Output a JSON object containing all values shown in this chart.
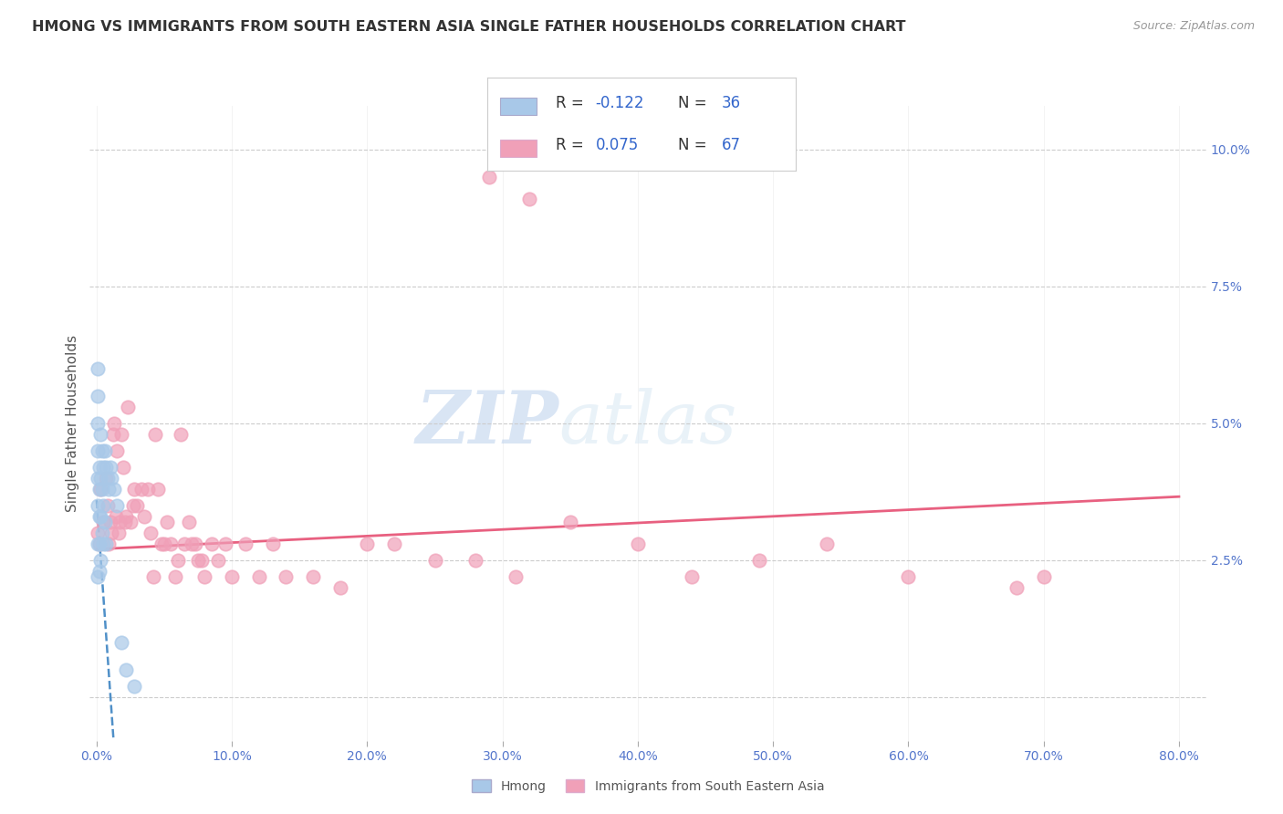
{
  "title": "HMONG VS IMMIGRANTS FROM SOUTH EASTERN ASIA SINGLE FATHER HOUSEHOLDS CORRELATION CHART",
  "source": "Source: ZipAtlas.com",
  "ylabel_ticks": [
    0.0,
    0.025,
    0.05,
    0.075,
    0.1
  ],
  "ylabel_labels": [
    "",
    "2.5%",
    "5.0%",
    "7.5%",
    "10.0%"
  ],
  "xlim": [
    -0.005,
    0.82
  ],
  "ylim": [
    -0.008,
    0.108
  ],
  "hmong_color": "#a8c8e8",
  "sea_color": "#f0a0b8",
  "trend_hmong_color": "#5090c8",
  "trend_sea_color": "#e86080",
  "watermark_zip": "ZIP",
  "watermark_atlas": "atlas",
  "legend_hmong": "Hmong",
  "legend_sea": "Immigrants from South Eastern Asia",
  "ylabel": "Single Father Households",
  "background_color": "#ffffff",
  "grid_color": "#cccccc",
  "hmong_x": [
    0.001,
    0.001,
    0.001,
    0.001,
    0.001,
    0.001,
    0.001,
    0.001,
    0.002,
    0.002,
    0.002,
    0.002,
    0.002,
    0.003,
    0.003,
    0.003,
    0.003,
    0.004,
    0.004,
    0.004,
    0.005,
    0.005,
    0.005,
    0.006,
    0.006,
    0.007,
    0.007,
    0.008,
    0.009,
    0.01,
    0.011,
    0.013,
    0.015,
    0.018,
    0.022,
    0.028
  ],
  "hmong_y": [
    0.06,
    0.055,
    0.05,
    0.045,
    0.04,
    0.035,
    0.028,
    0.022,
    0.042,
    0.038,
    0.033,
    0.028,
    0.023,
    0.048,
    0.04,
    0.033,
    0.025,
    0.045,
    0.038,
    0.03,
    0.042,
    0.035,
    0.028,
    0.045,
    0.032,
    0.042,
    0.028,
    0.04,
    0.038,
    0.042,
    0.04,
    0.038,
    0.035,
    0.01,
    0.005,
    0.002
  ],
  "sea_x": [
    0.001,
    0.002,
    0.003,
    0.005,
    0.007,
    0.008,
    0.009,
    0.01,
    0.011,
    0.012,
    0.013,
    0.014,
    0.015,
    0.016,
    0.017,
    0.018,
    0.02,
    0.021,
    0.022,
    0.023,
    0.025,
    0.027,
    0.028,
    0.03,
    0.033,
    0.035,
    0.038,
    0.04,
    0.042,
    0.043,
    0.045,
    0.048,
    0.05,
    0.052,
    0.055,
    0.058,
    0.06,
    0.062,
    0.065,
    0.068,
    0.07,
    0.073,
    0.075,
    0.078,
    0.08,
    0.085,
    0.09,
    0.095,
    0.1,
    0.11,
    0.12,
    0.13,
    0.14,
    0.16,
    0.18,
    0.2,
    0.22,
    0.25,
    0.28,
    0.31,
    0.35,
    0.4,
    0.44,
    0.49,
    0.54,
    0.6,
    0.7
  ],
  "sea_y": [
    0.03,
    0.028,
    0.038,
    0.032,
    0.04,
    0.035,
    0.028,
    0.032,
    0.03,
    0.048,
    0.05,
    0.033,
    0.045,
    0.03,
    0.032,
    0.048,
    0.042,
    0.032,
    0.033,
    0.053,
    0.032,
    0.035,
    0.038,
    0.035,
    0.038,
    0.033,
    0.038,
    0.03,
    0.022,
    0.048,
    0.038,
    0.028,
    0.028,
    0.032,
    0.028,
    0.022,
    0.025,
    0.048,
    0.028,
    0.032,
    0.028,
    0.028,
    0.025,
    0.025,
    0.022,
    0.028,
    0.025,
    0.028,
    0.022,
    0.028,
    0.022,
    0.028,
    0.022,
    0.022,
    0.02,
    0.028,
    0.028,
    0.025,
    0.025,
    0.022,
    0.032,
    0.028,
    0.022,
    0.025,
    0.028,
    0.022,
    0.022
  ],
  "sea_outlier_x": [
    0.29
  ],
  "sea_outlier_y": [
    0.095
  ],
  "sea_far_x": [
    0.68
  ],
  "sea_far_y": [
    0.02
  ],
  "pink_high_x": [
    0.32
  ],
  "pink_high_y": [
    0.091
  ]
}
